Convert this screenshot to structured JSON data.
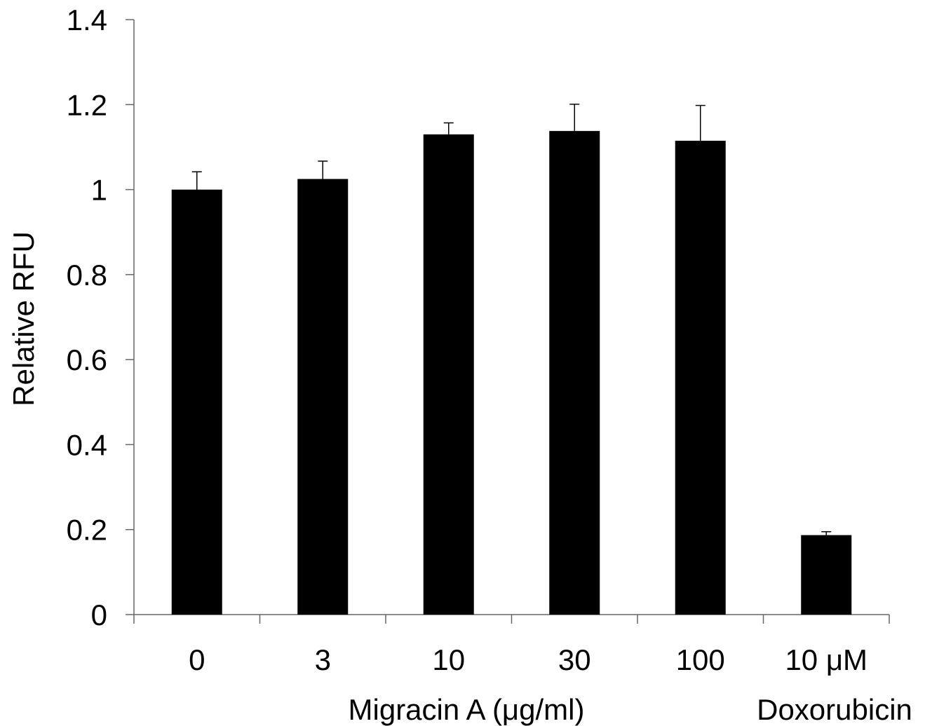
{
  "chart_data": {
    "type": "bar",
    "title": "",
    "ylabel": "Relative RFU",
    "xlabel": "",
    "ylim": [
      0,
      1.4
    ],
    "yticks": [
      "0",
      "0.2",
      "0.4",
      "0.6",
      "0.8",
      "1",
      "1.2",
      "1.4"
    ],
    "categories": [
      "0",
      "3",
      "10",
      "30",
      "100",
      "10 μM"
    ],
    "values": [
      1.0,
      1.025,
      1.13,
      1.138,
      1.115,
      0.187
    ],
    "errors": [
      0.042,
      0.042,
      0.027,
      0.063,
      0.083,
      0.008
    ],
    "group_labels": [
      "Migracin A (μg/ml)",
      "Doxorubicin"
    ],
    "bar_color": "#000000",
    "grid": false,
    "legend": "none"
  }
}
